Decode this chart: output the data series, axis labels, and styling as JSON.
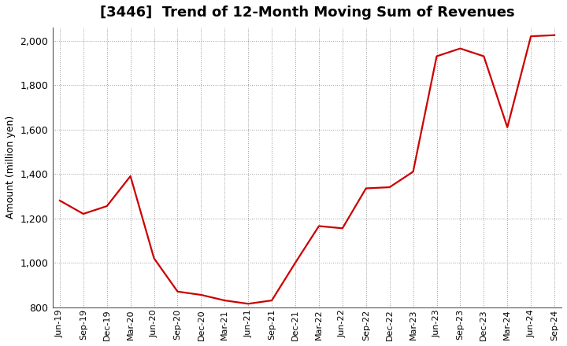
{
  "title": "[3446]  Trend of 12-Month Moving Sum of Revenues",
  "ylabel": "Amount (million yen)",
  "line_color": "#cc0000",
  "background_color": "#ffffff",
  "grid_color": "#999999",
  "ylim": [
    800,
    2060
  ],
  "yticks": [
    800,
    1000,
    1200,
    1400,
    1600,
    1800,
    2000
  ],
  "x_labels": [
    "Jun-19",
    "Sep-19",
    "Dec-19",
    "Mar-20",
    "Jun-20",
    "Sep-20",
    "Dec-20",
    "Mar-21",
    "Jun-21",
    "Sep-21",
    "Dec-21",
    "Mar-22",
    "Jun-22",
    "Sep-22",
    "Dec-22",
    "Mar-23",
    "Jun-23",
    "Sep-23",
    "Dec-23",
    "Mar-24",
    "Jun-24",
    "Sep-24"
  ],
  "values": [
    1280,
    1220,
    1255,
    1390,
    1020,
    870,
    855,
    830,
    815,
    830,
    1000,
    1165,
    1155,
    1335,
    1340,
    1410,
    1930,
    1965,
    1930,
    1610,
    2020,
    2025
  ],
  "title_fontsize": 13,
  "ylabel_fontsize": 9,
  "ytick_fontsize": 9,
  "xtick_fontsize": 8
}
